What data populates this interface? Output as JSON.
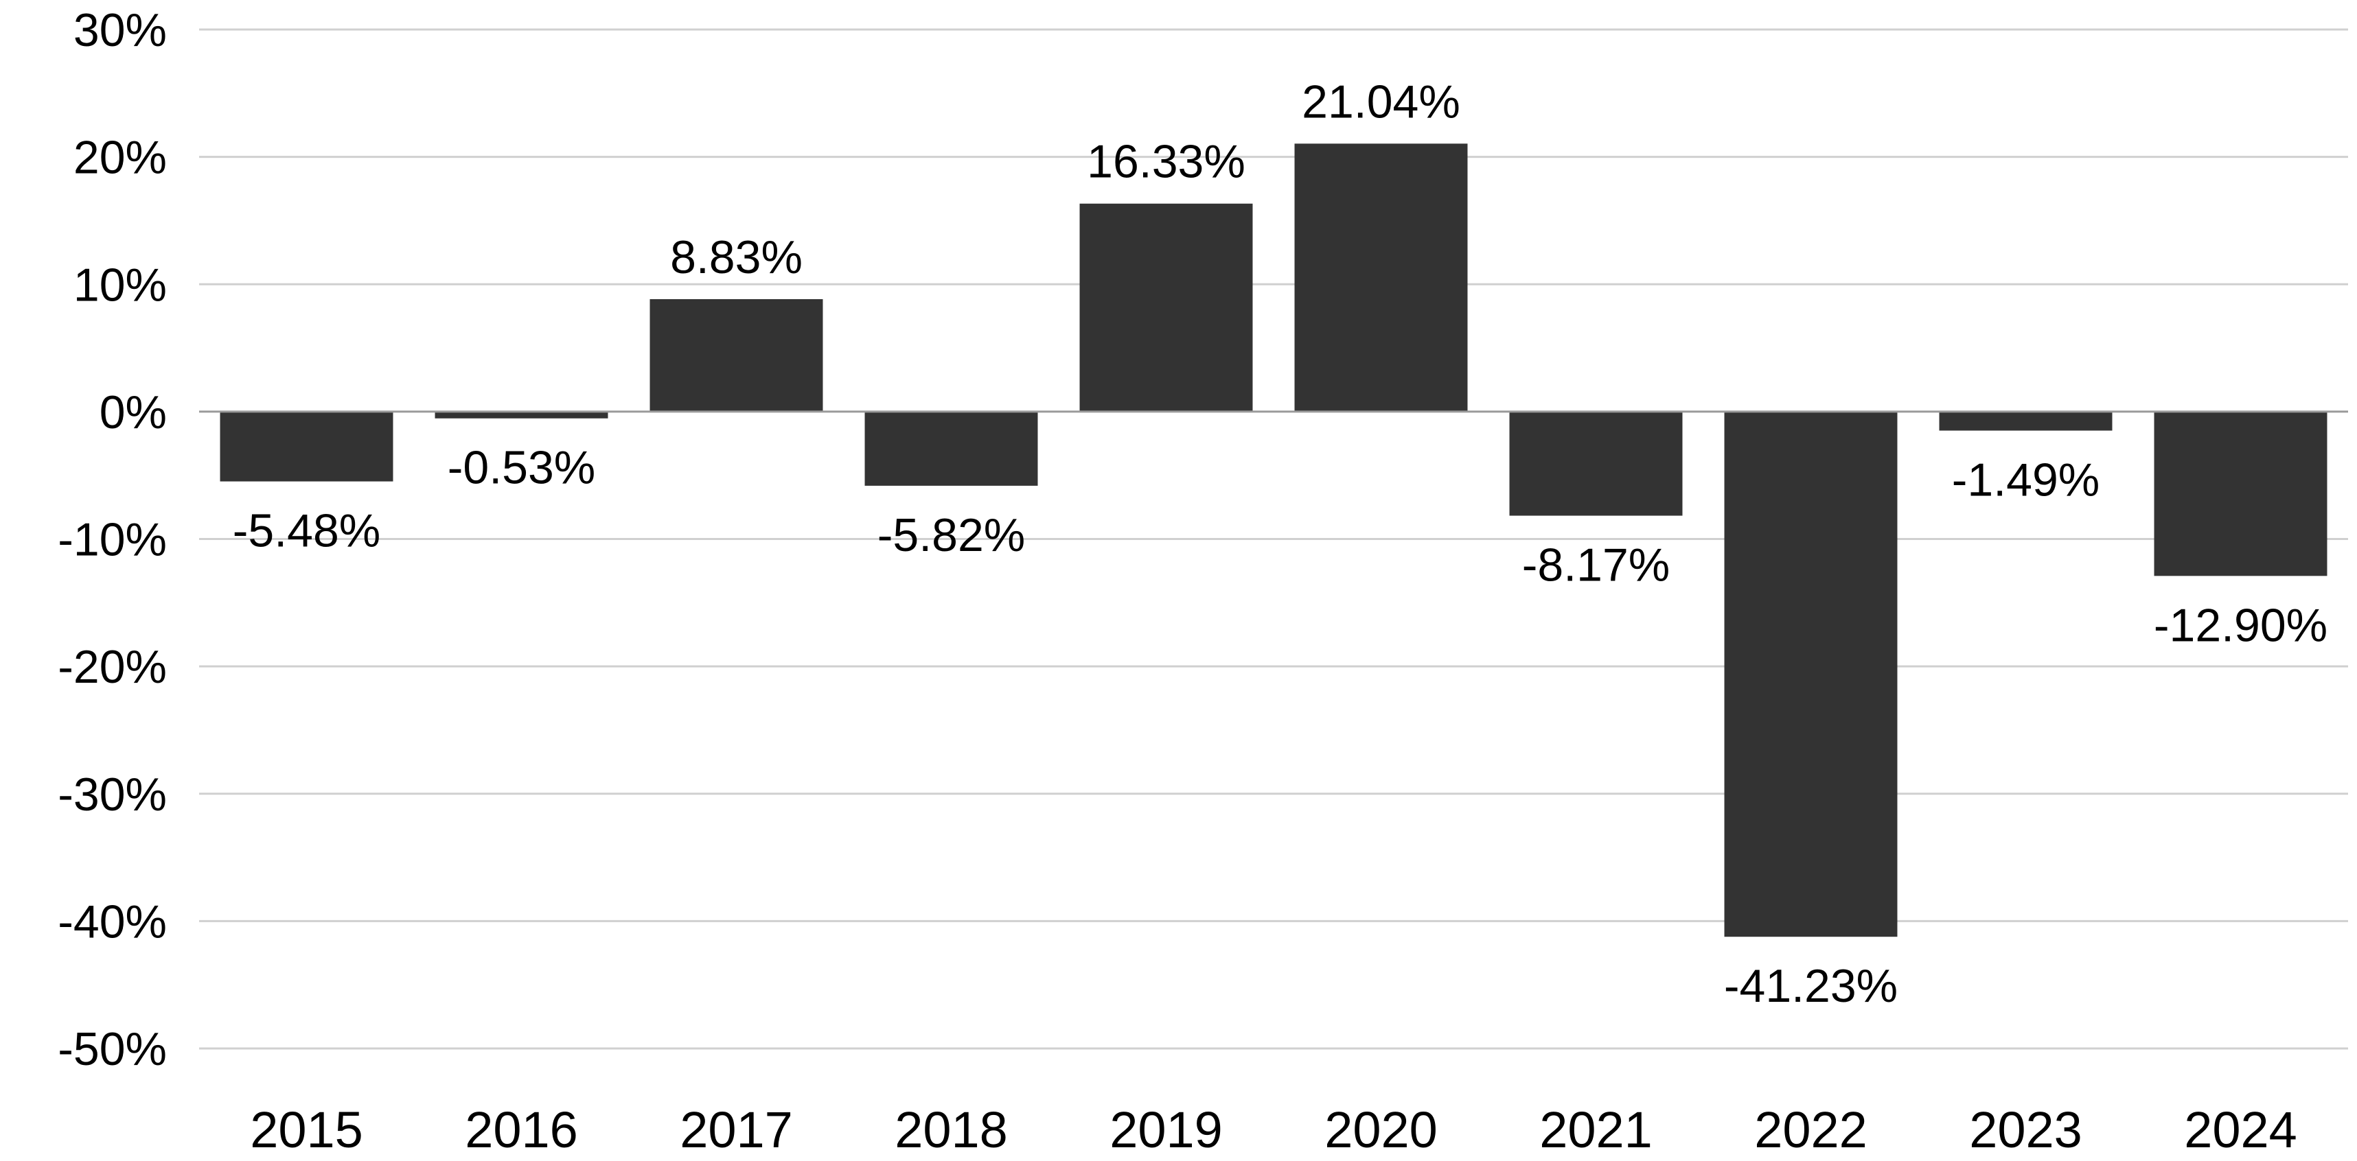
{
  "chart_data": {
    "type": "bar",
    "categories": [
      "2015",
      "2016",
      "2017",
      "2018",
      "2019",
      "2020",
      "2021",
      "2022",
      "2023",
      "2024"
    ],
    "values": [
      -5.48,
      -0.53,
      8.83,
      -5.82,
      16.33,
      21.04,
      -8.17,
      -41.23,
      -1.49,
      -12.9
    ],
    "data_labels": [
      "-5.48%",
      "-0.53%",
      "8.83%",
      "-5.82%",
      "16.33%",
      "21.04%",
      "-8.17%",
      "-41.23%",
      "-1.49%",
      "-12.90%"
    ],
    "y_ticks": [
      30,
      20,
      10,
      0,
      -10,
      -20,
      -30,
      -40,
      -50
    ],
    "y_tick_labels": [
      "30%",
      "20%",
      "10%",
      "0%",
      "-10%",
      "-20%",
      "-30%",
      "-40%",
      "-50%"
    ],
    "ylim": [
      -50,
      30
    ],
    "grid": true,
    "bar_color": "#333333",
    "title": "",
    "xlabel": "",
    "ylabel": ""
  }
}
